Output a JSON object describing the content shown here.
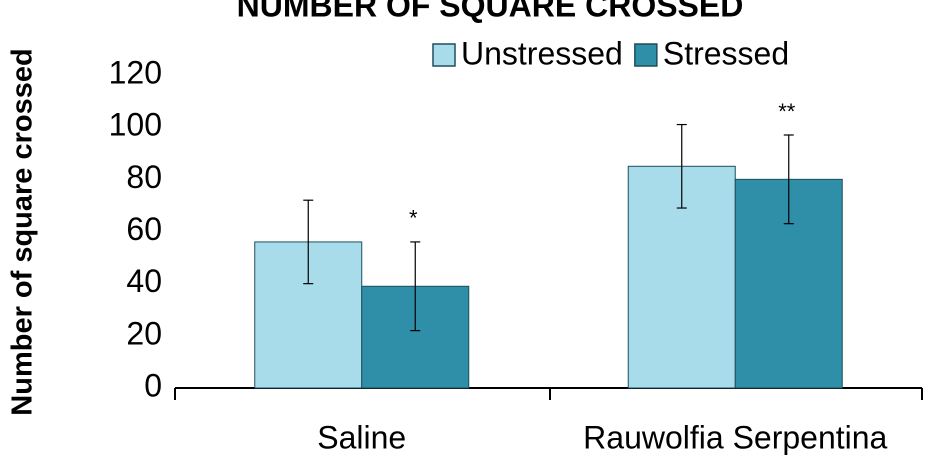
{
  "chart_data": {
    "type": "bar",
    "title": "NUMBER OF SQUARE CROSSED",
    "y_label": "Number of square crossed",
    "categories": [
      "Saline",
      "Rauwolfia Serpentina"
    ],
    "series": [
      {
        "name": "Unstressed",
        "color": "#a8dcea",
        "values": [
          56,
          85
        ],
        "errors": [
          16,
          16
        ]
      },
      {
        "name": "Stressed",
        "color": "#2f8ea8",
        "values": [
          39,
          80
        ],
        "errors": [
          17,
          17
        ],
        "annotations": [
          "*",
          "**"
        ]
      }
    ],
    "ylim": [
      0,
      120
    ],
    "yticks": [
      0,
      20,
      40,
      60,
      80,
      100,
      120
    ],
    "grid": false
  }
}
